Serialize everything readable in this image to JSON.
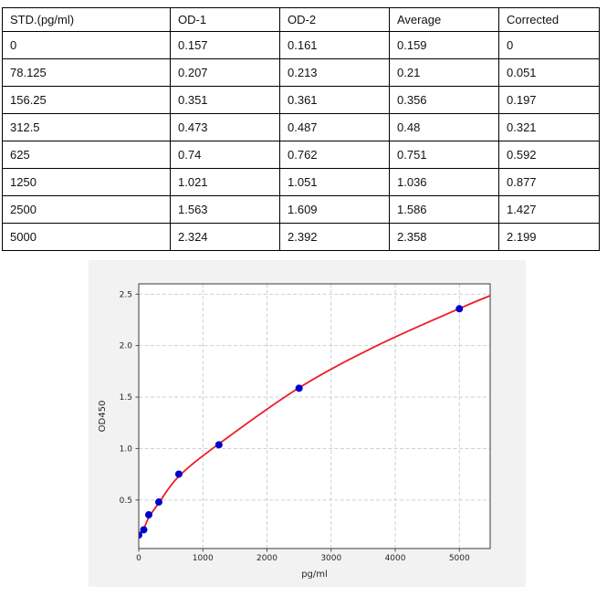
{
  "table": {
    "headers": [
      "STD.(pg/ml)",
      "OD-1",
      "OD-2",
      "Average",
      "Corrected"
    ],
    "rows": [
      [
        "0",
        "0.157",
        "0.161",
        "0.159",
        "0"
      ],
      [
        "78.125",
        "0.207",
        "0.213",
        "0.21",
        "0.051"
      ],
      [
        "156.25",
        "0.351",
        "0.361",
        "0.356",
        "0.197"
      ],
      [
        "312.5",
        "0.473",
        "0.487",
        "0.48",
        "0.321"
      ],
      [
        "625",
        "0.74",
        "0.762",
        "0.751",
        "0.592"
      ],
      [
        "1250",
        "1.021",
        "1.051",
        "1.036",
        "0.877"
      ],
      [
        "2500",
        "1.563",
        "1.609",
        "1.586",
        "1.427"
      ],
      [
        "5000",
        "2.324",
        "2.392",
        "2.358",
        "2.199"
      ]
    ]
  },
  "chart_data": {
    "type": "scatter",
    "title": "",
    "xlabel": "pg/ml",
    "ylabel": "OD450",
    "xlim": [
      0,
      5480
    ],
    "ylim": [
      0.028,
      2.6
    ],
    "xticks": [
      0,
      1000,
      2000,
      3000,
      4000,
      5000
    ],
    "yticks": [
      0.5,
      1.0,
      1.5,
      2.0,
      2.5
    ],
    "grid": true,
    "legend": "none",
    "series": [
      {
        "name": "standard-points",
        "type": "scatter",
        "x": [
          0,
          78.125,
          156.25,
          312.5,
          625,
          1250,
          2500,
          5000
        ],
        "y": [
          0.159,
          0.21,
          0.356,
          0.48,
          0.751,
          1.036,
          1.586,
          2.358
        ],
        "color": "#0000cd"
      },
      {
        "name": "fit-curve",
        "type": "line",
        "points": [
          [
            0,
            0.15
          ],
          [
            78.125,
            0.218
          ],
          [
            156.25,
            0.33
          ],
          [
            312.5,
            0.47
          ],
          [
            625,
            0.73
          ],
          [
            1250,
            1.045
          ],
          [
            2500,
            1.59
          ],
          [
            3700,
            1.995
          ],
          [
            5000,
            2.36
          ],
          [
            5480,
            2.485
          ]
        ],
        "color": "#ed1c24"
      }
    ],
    "colors": {
      "figure_bg": "#f2f2f2",
      "plot_bg": "#ffffff",
      "grid": "#c9c9c9",
      "spine": "#4d4d4d",
      "tick_label": "#262626"
    }
  }
}
